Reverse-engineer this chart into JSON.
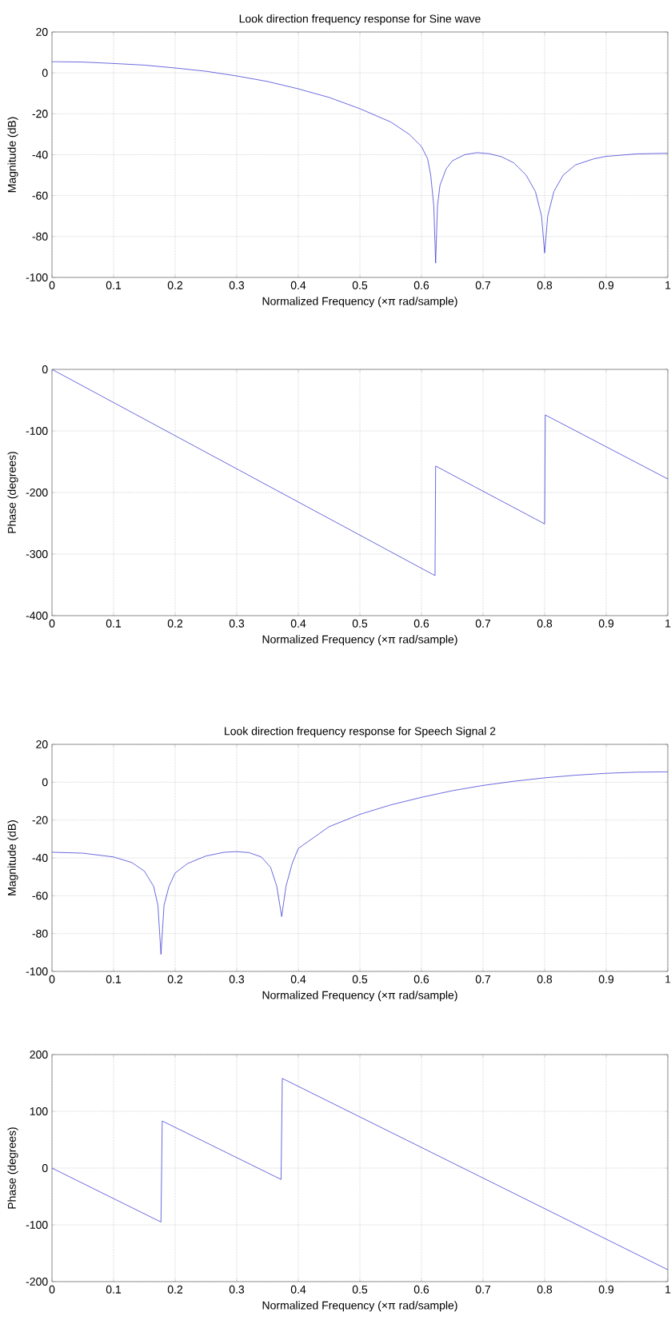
{
  "chart_data": [
    {
      "type": "line",
      "title": "Look direction frequency response for Sine wave",
      "xlabel": "Normalized Frequency  (×π rad/sample)",
      "ylabel": "Magnitude (dB)",
      "color": "#2b2bd0",
      "grid": true,
      "x": [
        0,
        0.05,
        0.1,
        0.15,
        0.2,
        0.25,
        0.3,
        0.35,
        0.4,
        0.45,
        0.5,
        0.55,
        0.58,
        0.6,
        0.61,
        0.615,
        0.62,
        0.623,
        0.626,
        0.63,
        0.64,
        0.65,
        0.67,
        0.69,
        0.71,
        0.73,
        0.75,
        0.77,
        0.785,
        0.795,
        0.8,
        0.805,
        0.815,
        0.83,
        0.85,
        0.88,
        0.9,
        0.95,
        1
      ],
      "values": [
        5.5,
        5.3,
        4.6,
        3.8,
        2.4,
        0.8,
        -1.5,
        -4.2,
        -7.8,
        -12,
        -17.5,
        -24,
        -30,
        -36,
        -42,
        -50,
        -65,
        -93,
        -65,
        -55,
        -47,
        -43,
        -40,
        -39,
        -39.5,
        -41,
        -44,
        -50,
        -58,
        -70,
        -88,
        -70,
        -58,
        -50,
        -45,
        -42,
        -40.8,
        -39.6,
        -39.3
      ],
      "xlim": [
        0,
        1
      ],
      "ylim": [
        -100,
        20
      ],
      "xticks": [
        0,
        0.1,
        0.2,
        0.3,
        0.4,
        0.5,
        0.6,
        0.7,
        0.8,
        0.9,
        1
      ],
      "yticks": [
        -100,
        -80,
        -60,
        -40,
        -20,
        0,
        20
      ]
    },
    {
      "type": "line",
      "xlabel": "Normalized Frequency  (×π rad/sample)",
      "ylabel": "Phase (degrees)",
      "color": "#2b2bd0",
      "grid": true,
      "x": [
        0,
        0.622,
        0.623,
        0.8,
        0.801,
        1
      ],
      "values": [
        0,
        -335,
        -157,
        -251,
        -74,
        -178
      ],
      "xlim": [
        0,
        1
      ],
      "ylim": [
        -400,
        0
      ],
      "xticks": [
        0,
        0.1,
        0.2,
        0.3,
        0.4,
        0.5,
        0.6,
        0.7,
        0.8,
        0.9,
        1
      ],
      "yticks": [
        -400,
        -300,
        -200,
        -100,
        0
      ]
    },
    {
      "type": "line",
      "title": "Look direction frequency response for Speech Signal 2",
      "xlabel": "Normalized Frequency  (×π rad/sample)",
      "ylabel": "Magnitude (dB)",
      "color": "#2b2bd0",
      "grid": true,
      "x": [
        0,
        0.05,
        0.1,
        0.13,
        0.15,
        0.165,
        0.172,
        0.177,
        0.182,
        0.19,
        0.2,
        0.22,
        0.25,
        0.28,
        0.3,
        0.32,
        0.34,
        0.355,
        0.365,
        0.373,
        0.38,
        0.39,
        0.4,
        0.45,
        0.5,
        0.55,
        0.6,
        0.65,
        0.7,
        0.75,
        0.8,
        0.85,
        0.9,
        0.95,
        1
      ],
      "values": [
        -37,
        -37.5,
        -39.5,
        -42.5,
        -47,
        -55,
        -65,
        -91,
        -65,
        -55,
        -48,
        -43,
        -39,
        -37,
        -36.7,
        -37.2,
        -39.5,
        -45,
        -55,
        -71,
        -55,
        -43,
        -35,
        -23.5,
        -17,
        -12,
        -8,
        -4.5,
        -1.7,
        0.5,
        2.3,
        3.7,
        4.7,
        5.3,
        5.5
      ],
      "xlim": [
        0,
        1
      ],
      "ylim": [
        -100,
        20
      ],
      "xticks": [
        0,
        0.1,
        0.2,
        0.3,
        0.4,
        0.5,
        0.6,
        0.7,
        0.8,
        0.9,
        1
      ],
      "yticks": [
        -100,
        -80,
        -60,
        -40,
        -20,
        0,
        20
      ]
    },
    {
      "type": "line",
      "xlabel": "Normalized Frequency  (×π rad/sample)",
      "ylabel": "Phase (degrees)",
      "color": "#2b2bd0",
      "grid": true,
      "x": [
        0,
        0.177,
        0.179,
        0.372,
        0.374,
        1
      ],
      "values": [
        0,
        -95,
        83,
        -20,
        158,
        -179
      ],
      "xlim": [
        0,
        1
      ],
      "ylim": [
        -200,
        200
      ],
      "xticks": [
        0,
        0.1,
        0.2,
        0.3,
        0.4,
        0.5,
        0.6,
        0.7,
        0.8,
        0.9,
        1
      ],
      "yticks": [
        -200,
        -100,
        0,
        100,
        200
      ]
    }
  ]
}
